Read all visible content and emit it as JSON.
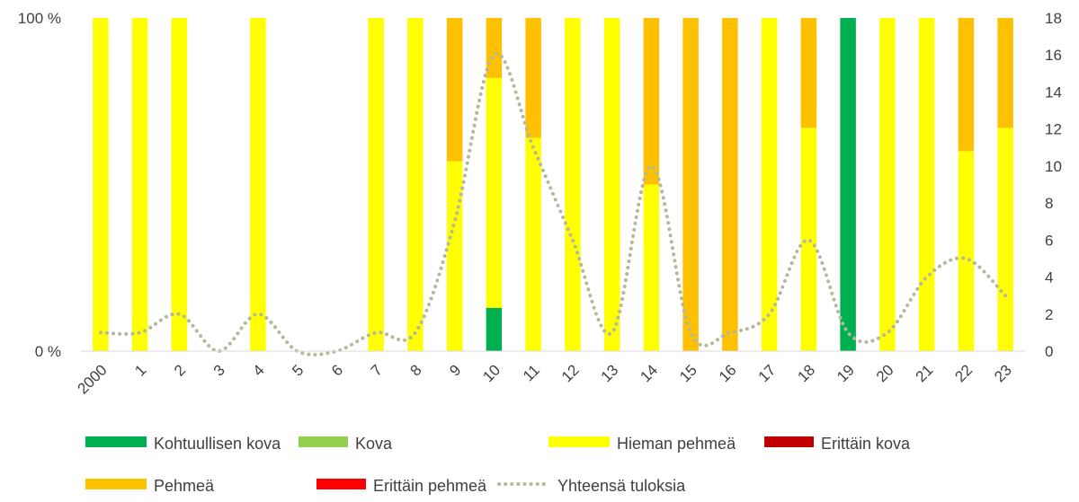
{
  "chart_data": {
    "type": "bar",
    "stacked": "percent",
    "categories": [
      "2000",
      "1",
      "2",
      "3",
      "4",
      "5",
      "6",
      "7",
      "8",
      "9",
      "10",
      "11",
      "12",
      "13",
      "14",
      "15",
      "16",
      "17",
      "18",
      "19",
      "20",
      "21",
      "22",
      "23"
    ],
    "left_axis": {
      "ticks": [
        "0 %",
        "100 %"
      ],
      "range": [
        0,
        100
      ]
    },
    "right_axis": {
      "ticks": [
        "0",
        "2",
        "4",
        "6",
        "8",
        "10",
        "12",
        "14",
        "16",
        "18"
      ],
      "range": [
        0,
        18
      ]
    },
    "grid": false,
    "legend_position": "bottom",
    "series": [
      {
        "name": "Kohtuullisen kova",
        "color": "#00B050",
        "kind": "bar",
        "values": [
          0,
          0,
          0,
          0,
          0,
          0,
          0,
          0,
          0,
          0,
          0.13,
          0,
          0,
          0,
          0,
          0,
          0,
          0,
          0,
          1,
          0,
          0,
          0,
          0
        ]
      },
      {
        "name": "Kova",
        "color": "#92D050",
        "kind": "bar",
        "values": [
          0,
          0,
          0,
          0,
          0,
          0,
          0,
          0,
          0,
          0,
          0,
          0,
          0,
          0,
          0,
          0,
          0,
          0,
          0,
          0,
          0,
          0,
          0,
          0
        ]
      },
      {
        "name": "Hieman pehmeä",
        "color": "#FFFF00",
        "kind": "bar",
        "values": [
          1,
          1,
          1,
          0,
          1,
          0,
          0,
          1,
          1,
          0.57,
          0.69,
          0.64,
          1,
          1,
          0.5,
          0,
          0,
          1,
          0.67,
          0,
          1,
          1,
          0.6,
          0.67
        ]
      },
      {
        "name": "Erittäin kova",
        "color": "#C00000",
        "kind": "bar",
        "values": [
          0,
          0,
          0,
          0,
          0,
          0,
          0,
          0,
          0,
          0,
          0,
          0,
          0,
          0,
          0,
          0,
          0,
          0,
          0,
          0,
          0,
          0,
          0,
          0
        ]
      },
      {
        "name": "Pehmeä",
        "color": "#FFC000",
        "kind": "bar",
        "values": [
          0,
          0,
          0,
          0,
          0,
          0,
          0,
          0,
          0,
          0.43,
          0.18,
          0.36,
          0,
          0,
          0.5,
          1,
          1,
          0,
          0.33,
          0,
          0,
          0,
          0.4,
          0.33
        ]
      },
      {
        "name": "Erittäin pehmeä",
        "color": "#FF0000",
        "kind": "bar",
        "values": [
          0,
          0,
          0,
          0,
          0,
          0,
          0,
          0,
          0,
          0,
          0,
          0,
          0,
          0,
          0,
          0,
          0,
          0,
          0,
          0,
          0,
          0,
          0,
          0
        ]
      },
      {
        "name": "Yhteensä tuloksia",
        "color": "#B5B99A",
        "kind": "line",
        "axis": "right",
        "values": [
          1,
          1,
          2,
          0,
          2,
          0,
          0,
          1,
          1,
          7,
          16,
          11,
          6,
          1,
          10,
          1,
          1,
          2,
          6,
          1,
          1,
          4,
          5,
          3
        ]
      }
    ]
  }
}
